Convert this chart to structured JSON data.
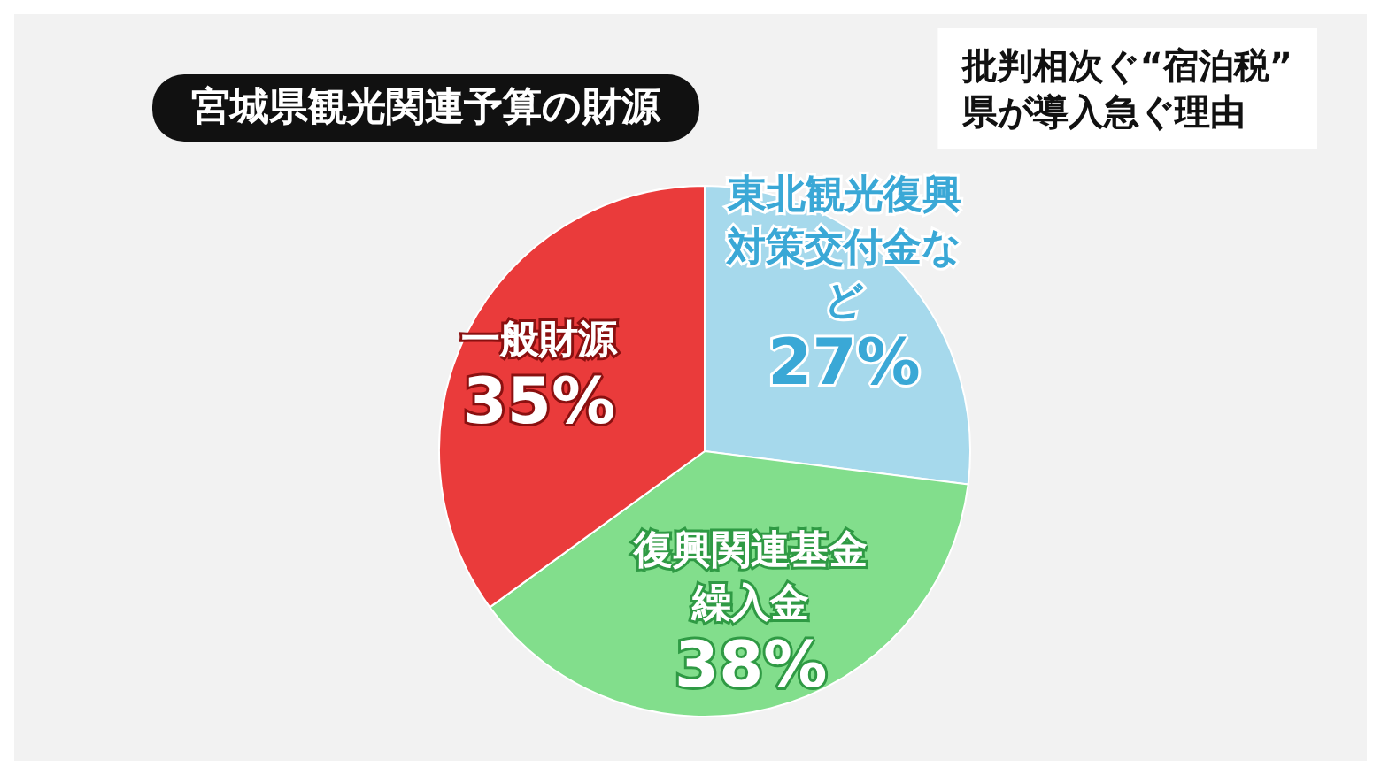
{
  "chart_data": {
    "type": "pie",
    "title": "宮城県観光関連予算の財源",
    "subtitle": "批判相次ぐ“宿泊税”\n県が導入急ぐ理由",
    "categories": [
      "東北観光復興対策交付金など",
      "復興関連基金繰入金",
      "一般財源"
    ],
    "values": [
      27,
      38,
      35
    ],
    "value_labels": [
      "27%",
      "38%",
      "35%"
    ],
    "colors": [
      "#a6d9ec",
      "#82de8c",
      "#ea3b3b"
    ],
    "legend": false
  }
}
